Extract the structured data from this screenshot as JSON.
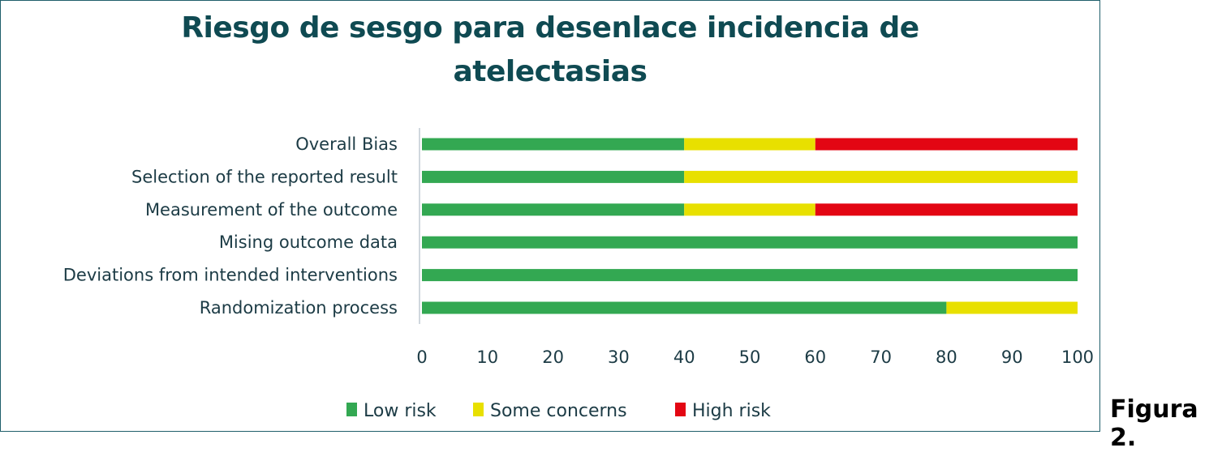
{
  "caption": "Figura 2.",
  "chart_data": {
    "type": "bar",
    "orientation": "horizontal",
    "stacked": true,
    "title": "Riesgo de sesgo para desenlace incidencia de atelectasias",
    "title_lines": [
      "Riesgo de sesgo para desenlace incidencia de",
      "atelectasias"
    ],
    "xlabel": "",
    "ylabel": "",
    "xlim": [
      0,
      100
    ],
    "xticks": [
      0,
      10,
      20,
      30,
      40,
      50,
      60,
      70,
      80,
      90,
      100
    ],
    "grid": false,
    "legend_position": "bottom",
    "categories": [
      "Overall Bias",
      "Selection of the reported result",
      "Measurement of the outcome",
      "Mising outcome data",
      "Deviations from intended interventions",
      "Randomization process"
    ],
    "series": [
      {
        "name": "Low risk",
        "color": "#33a852",
        "values": [
          40,
          40,
          40,
          100,
          100,
          80
        ]
      },
      {
        "name": "Some concerns",
        "color": "#e8e000",
        "values": [
          20,
          60,
          20,
          0,
          0,
          20
        ]
      },
      {
        "name": "High risk",
        "color": "#e30613",
        "values": [
          40,
          0,
          40,
          0,
          0,
          0
        ]
      }
    ]
  }
}
